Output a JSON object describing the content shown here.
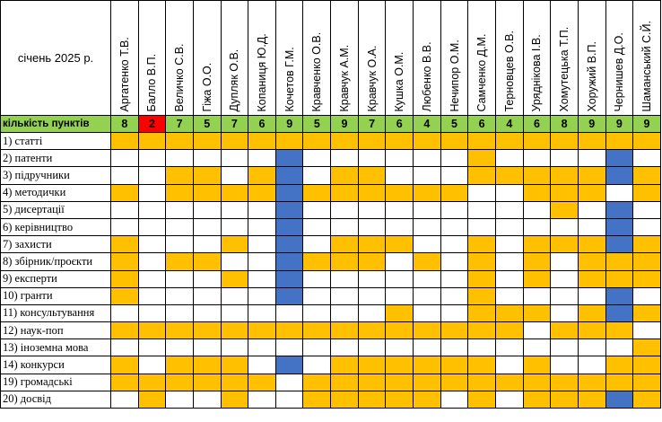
{
  "sheet": {
    "corner_label": "січень 2025 р.",
    "points_label": "кількість пунктів",
    "people": [
      "Аргатенко Т.В.",
      "Балло В.П.",
      "Величко С.В.",
      "Гіжа О.О.",
      "Дупляк О.В.",
      "Копаниця Ю.Д.",
      "Кочетов Г.М.",
      "Кравченко О.В.",
      "Кравчук А.М.",
      "Кравчук О.А.",
      "Кушка О.М.",
      "Любенко В.В.",
      "Нечипор О.М.",
      "Самченко Д.М.",
      "Терновцев О.В.",
      "Уряднікова І.В.",
      "Хомутецька Т.П.",
      "Хоружий В.П.",
      "Чернишев Д.О.",
      "Шаманський С.Й."
    ],
    "points": [
      "8",
      "2",
      "7",
      "5",
      "7",
      "6",
      "9",
      "5",
      "9",
      "7",
      "6",
      "4",
      "5",
      "6",
      "4",
      "6",
      "8",
      "9",
      "9",
      "9"
    ],
    "points_colors": [
      "g",
      "r",
      "g",
      "g",
      "g",
      "g",
      "g",
      "g",
      "g",
      "g",
      "g",
      "g",
      "g",
      "g",
      "g",
      "g",
      "g",
      "g",
      "g",
      "g"
    ],
    "criteria": [
      {
        "label": "1) статті",
        "cells": "yyyyyyyyyyyyyyyyyyyy"
      },
      {
        "label": "2) патенти",
        "cells": "......b......y....b."
      },
      {
        "label": "3) підручники",
        "cells": "..yy.yb.yy...yyyyyby"
      },
      {
        "label": "4) методички",
        "cells": "y.yyyybyyyyyy..yyy.y"
      },
      {
        "label": "5) дисертації",
        "cells": "......b.........y.b."
      },
      {
        "label": "6) керівництво",
        "cells": "......b...........b."
      },
      {
        "label": "7) захисти",
        "cells": "y...y.b.yyy..y.yyyby"
      },
      {
        "label": "8) збірник/проєкти",
        "cells": "y.yy..byyy.y.y.y.yyy"
      },
      {
        "label": "9) експерти",
        "cells": "y...y.b......y.y.yyy"
      },
      {
        "label": "10) гранти",
        "cells": "y.....b......y....b."
      },
      {
        "label": "11) консультування",
        "cells": "..........y..yyy.yby"
      },
      {
        "label": "12) наук-поп",
        "cells": "yyyyyyyyyyyyyyy.yyy."
      },
      {
        "label": "13) іноземна мова",
        "cells": "...................y"
      },
      {
        "label": "14) конкурси",
        "cells": "y.yyy.b.yyyyyy.y..yy"
      },
      {
        "label": "19) громадські",
        "cells": "yyyyyy.yyyyyyyyyyyyy"
      },
      {
        "label": "20) досвід",
        "cells": ".y..y..yyyyy.y.yyyby"
      }
    ]
  },
  "colors": {
    "green": "#93d150",
    "red": "#ff0000",
    "yellow": "#ffc000",
    "blue": "#4472c4",
    "white": "#ffffff"
  }
}
